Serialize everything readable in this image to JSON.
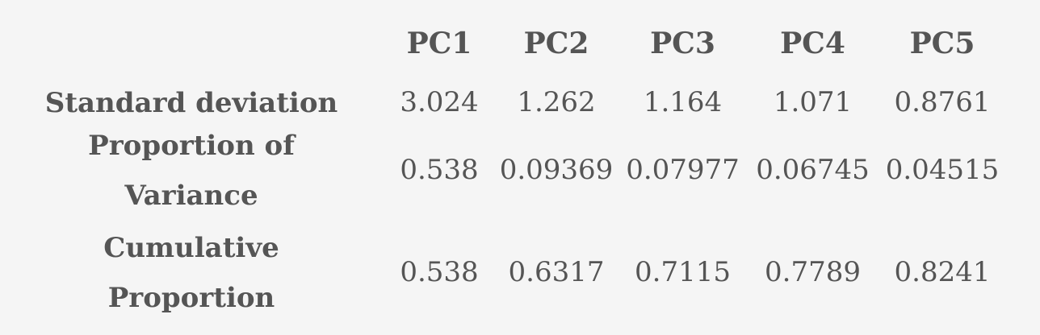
{
  "table": {
    "columns": [
      "PC1",
      "PC2",
      "PC3",
      "PC4",
      "PC5"
    ],
    "rows": [
      {
        "label": "Standard deviation",
        "values": [
          "3.024",
          "1.262",
          "1.164",
          "1.071",
          "0.8761"
        ]
      },
      {
        "label": "Proportion of Variance",
        "values": [
          "0.538",
          "0.09369",
          "0.07977",
          "0.06745",
          "0.04515"
        ]
      },
      {
        "label": "Cumulative Proportion",
        "values": [
          "0.538",
          "0.6317",
          "0.7115",
          "0.7789",
          "0.8241"
        ]
      }
    ]
  },
  "colors": {
    "background": "#f5f5f5",
    "text": "#555555"
  }
}
